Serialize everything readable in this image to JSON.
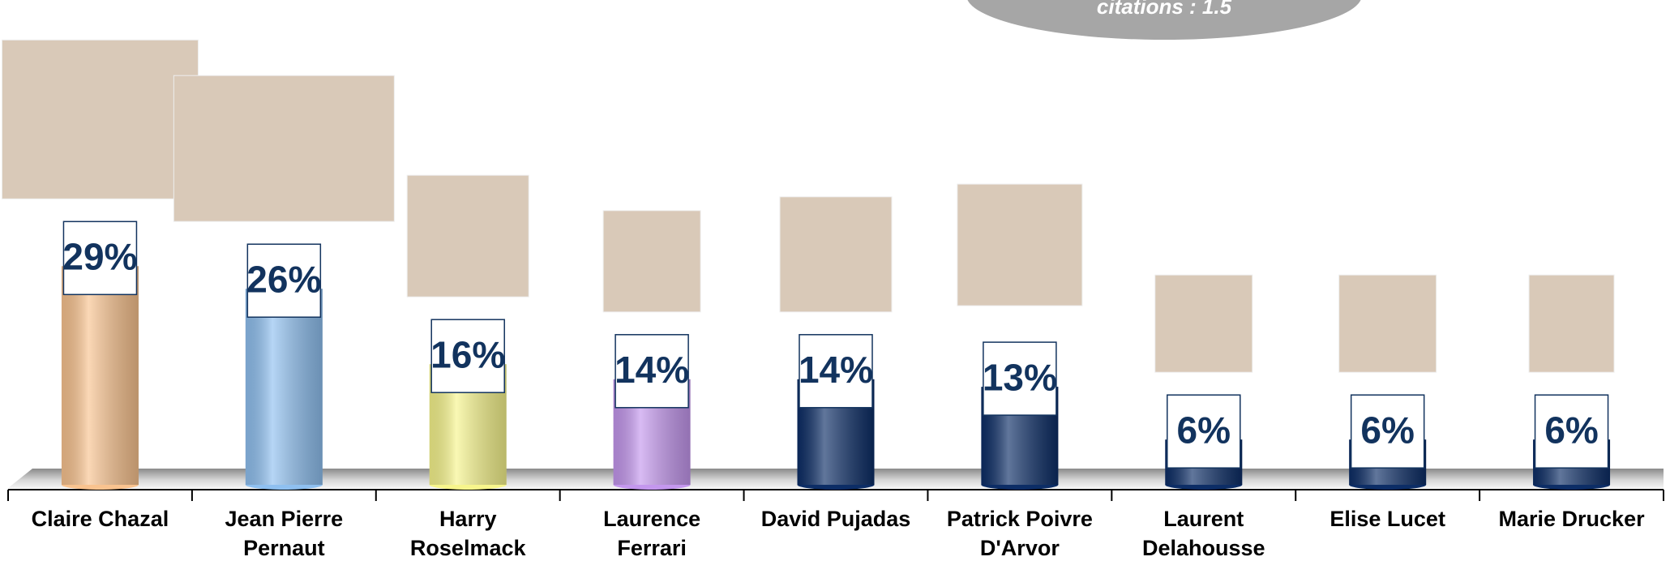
{
  "chart_data": {
    "type": "bar",
    "annotation": "citations : 1.5",
    "categories": [
      "Claire Chazal",
      "Jean Pierre Pernaut",
      "Harry Roselmack",
      "Laurence Ferrari",
      "David Pujadas",
      "Patrick Poivre D'Arvor",
      "Laurent Delahousse",
      "Elise Lucet",
      "Marie Drucker"
    ],
    "values": [
      29,
      26,
      16,
      14,
      14,
      13,
      6,
      6,
      6
    ],
    "value_labels": [
      "29%",
      "26%",
      "16%",
      "14%",
      "14%",
      "13%",
      "6%",
      "6%",
      "6%"
    ],
    "colors": [
      "#f9c38f",
      "#8fc0f0",
      "#f7f58c",
      "#c497ee",
      "#0c2d66",
      "#0c2d66",
      "#0c2d66",
      "#0c2d66",
      "#0c2d66"
    ]
  }
}
